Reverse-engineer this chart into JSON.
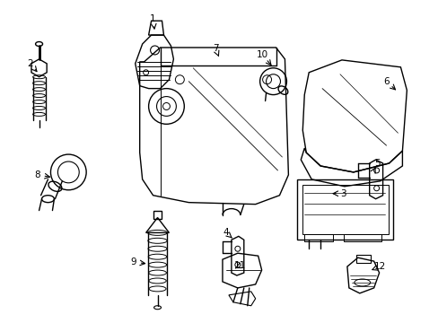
{
  "background_color": "#ffffff",
  "line_color": "#000000",
  "line_width": 1.0,
  "figsize": [
    4.89,
    3.6
  ],
  "dpi": 100
}
